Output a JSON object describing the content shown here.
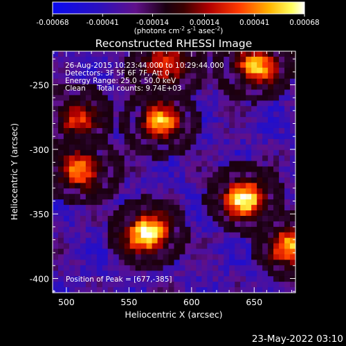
{
  "colorbar": {
    "tick_labels": [
      "-0.00068",
      "-0.00041",
      "-0.00014",
      "0.00014",
      "0.00041",
      "0.00068"
    ],
    "range": [
      -0.00068,
      0.00068
    ],
    "units_prefix": "(photons cm",
    "units_exp1": "-2",
    "units_mid": " s",
    "units_exp2": "-1",
    "units_mid2": " asec",
    "units_exp3": "-2",
    "units_suffix": ")"
  },
  "footer": {
    "timestamp": "23-May-2022 03:10"
  },
  "chart_data": {
    "type": "heatmap",
    "title": "Reconstructed RHESSI Image",
    "xlabel": "Heliocentric X (arcsec)",
    "ylabel": "Heliocentric Y (arcsec)",
    "xlim": [
      489,
      683
    ],
    "ylim": [
      -411,
      -224
    ],
    "xticks": [
      500,
      550,
      600,
      650
    ],
    "yticks": [
      -250,
      -300,
      -350,
      -400
    ],
    "xtick_labels": [
      "500",
      "550",
      "600",
      "650"
    ],
    "ytick_labels": [
      "-250",
      "-300",
      "-350",
      "-400"
    ],
    "colormap": "black-blue-purple-red-orange-yellow-white",
    "annotations": [
      "26-Aug-2015 10:23:44.000 to 10:29:44.000",
      "Detectors: 3F 5F 6F 7F, Att 0",
      "Energy Range: 25.0 - 50.0 keV",
      "Clean     Total counts: 9.74E+03"
    ],
    "peak_label": "Position of Peak = [677,-385]",
    "peak": [
      677,
      -385
    ],
    "bright_sources": [
      {
        "x": 565,
        "y": -365,
        "level": 0.95
      },
      {
        "x": 643,
        "y": -338,
        "level": 0.85
      },
      {
        "x": 681,
        "y": -375,
        "level": 0.8
      },
      {
        "x": 650,
        "y": -236,
        "level": 0.75
      },
      {
        "x": 575,
        "y": -279,
        "level": 0.7
      },
      {
        "x": 513,
        "y": -316,
        "level": 0.7
      },
      {
        "x": 580,
        "y": -235,
        "level": 0.65
      },
      {
        "x": 506,
        "y": -276,
        "level": 0.55
      }
    ]
  }
}
